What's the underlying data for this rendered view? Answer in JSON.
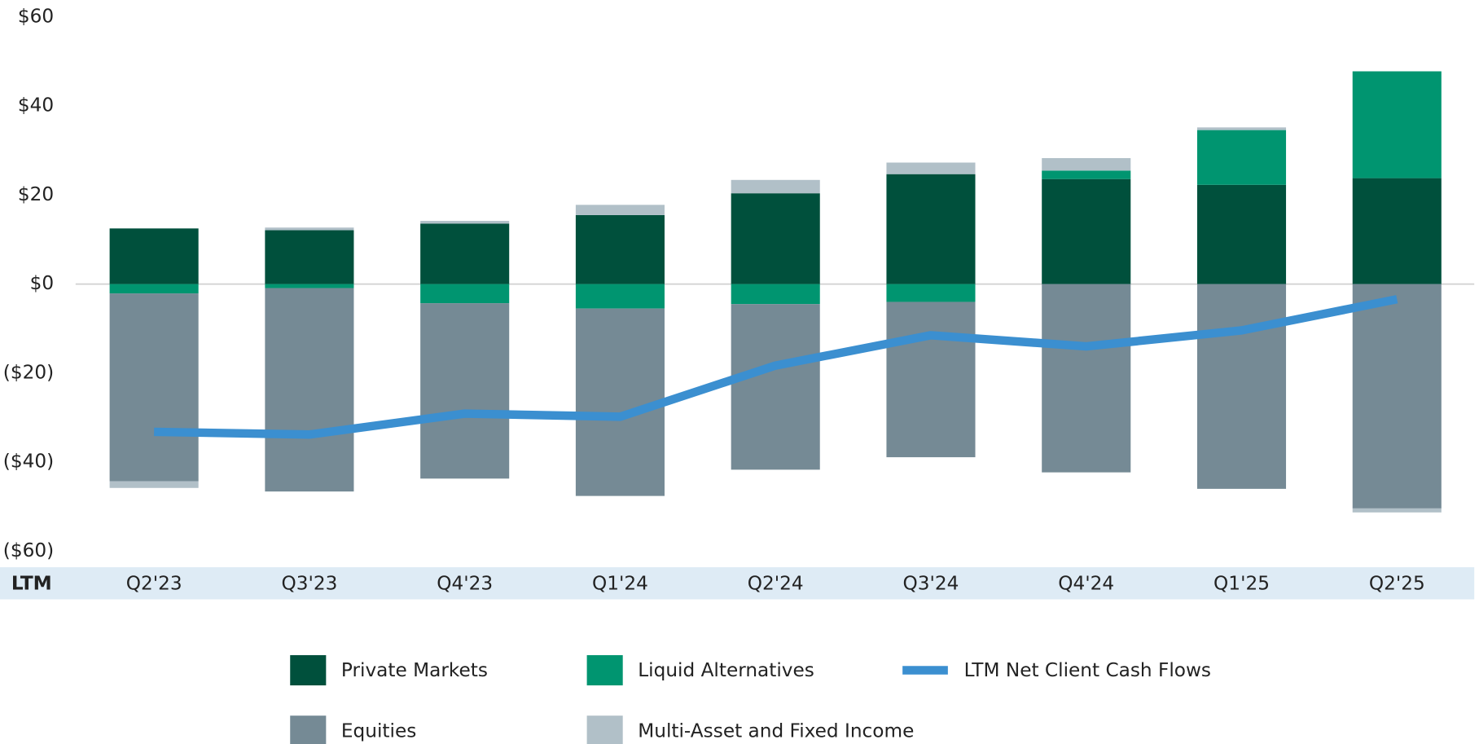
{
  "chart_data": {
    "type": "bar",
    "x_axis_label": "LTM",
    "categories": [
      "Q2'23",
      "Q3'23",
      "Q4'23",
      "Q1'24",
      "Q2'24",
      "Q3'24",
      "Q4'24",
      "Q1'25",
      "Q2'25"
    ],
    "series": [
      {
        "name": "Private Markets",
        "color": "#00503c",
        "values": [
          12.5,
          12.1,
          13.6,
          15.5,
          20.4,
          24.7,
          23.6,
          22.3,
          23.8
        ]
      },
      {
        "name": "Liquid Alternatives",
        "color": "#009570",
        "values": [
          -2.1,
          -0.9,
          -4.3,
          -5.5,
          -4.5,
          -4.0,
          1.9,
          12.3,
          24.0
        ]
      },
      {
        "name": "LTM Net Client Cash Flows",
        "type": "line",
        "color": "#3b8fd0",
        "values": [
          -33.2,
          -33.8,
          -29.1,
          -29.8,
          -18.3,
          -11.5,
          -14.0,
          -10.4,
          -3.4
        ]
      },
      {
        "name": "Equities",
        "color": "#758a95",
        "values": [
          -42.2,
          -45.7,
          -39.4,
          -42.1,
          -37.2,
          -34.9,
          -42.3,
          -46.0,
          -50.4
        ]
      },
      {
        "name": "Multi-Asset and Fixed Income",
        "color": "#b1c0c8",
        "values": [
          -1.5,
          0.6,
          0.6,
          2.3,
          3.0,
          2.6,
          2.8,
          0.6,
          -0.9
        ]
      }
    ],
    "ylim": [
      -60,
      60
    ],
    "yticks": [
      {
        "value": -60,
        "label": "($60)"
      },
      {
        "value": -40,
        "label": "($40)"
      },
      {
        "value": -20,
        "label": "($20)"
      },
      {
        "value": 0,
        "label": "$0"
      },
      {
        "value": 20,
        "label": "$20"
      },
      {
        "value": 40,
        "label": "$40"
      },
      {
        "value": 60,
        "label": "$60"
      }
    ]
  }
}
